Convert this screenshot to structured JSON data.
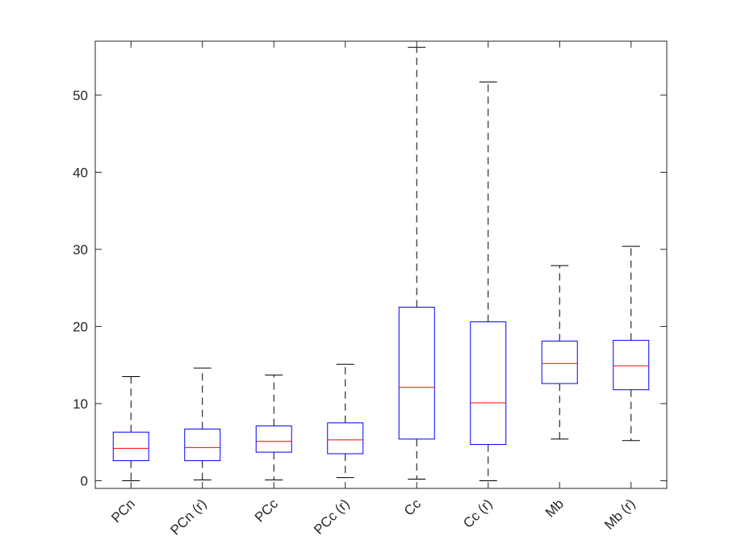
{
  "chart_data": {
    "type": "box",
    "title": "",
    "xlabel": "",
    "ylabel": "",
    "ylim": [
      -1,
      57
    ],
    "yticks": [
      0,
      10,
      20,
      30,
      40,
      50
    ],
    "ytick_labels": [
      "0",
      "10",
      "20",
      "30",
      "40",
      "50"
    ],
    "categories": [
      "PCn",
      "PCn (r)",
      "PCc",
      "PCc (r)",
      "Cc",
      "Cc (r)",
      "Mb",
      "Mb (r)"
    ],
    "boxes": [
      {
        "label": "PCn",
        "whisker_low": 0.0,
        "q1": 2.6,
        "median": 4.2,
        "q3": 6.3,
        "whisker_high": 13.5
      },
      {
        "label": "PCn (r)",
        "whisker_low": 0.1,
        "q1": 2.6,
        "median": 4.3,
        "q3": 6.7,
        "whisker_high": 14.6
      },
      {
        "label": "PCc",
        "whisker_low": 0.1,
        "q1": 3.7,
        "median": 5.1,
        "q3": 7.1,
        "whisker_high": 13.7
      },
      {
        "label": "PCc (r)",
        "whisker_low": 0.4,
        "q1": 3.5,
        "median": 5.3,
        "q3": 7.5,
        "whisker_high": 15.1
      },
      {
        "label": "Cc",
        "whisker_low": 0.2,
        "q1": 5.4,
        "median": 12.1,
        "q3": 22.5,
        "whisker_high": 56.2
      },
      {
        "label": "Cc (r)",
        "whisker_low": 0.0,
        "q1": 4.7,
        "median": 10.1,
        "q3": 20.6,
        "whisker_high": 51.7
      },
      {
        "label": "Mb",
        "whisker_low": 5.4,
        "q1": 12.6,
        "median": 15.2,
        "q3": 18.1,
        "whisker_high": 27.9
      },
      {
        "label": "Mb (r)",
        "whisker_low": 5.2,
        "q1": 11.8,
        "median": 14.9,
        "q3": 18.2,
        "whisker_high": 30.4
      }
    ],
    "colors": {
      "box": "#0000ff",
      "median": "#ff0000",
      "whisker": "#000000",
      "axis": "#262626"
    }
  }
}
